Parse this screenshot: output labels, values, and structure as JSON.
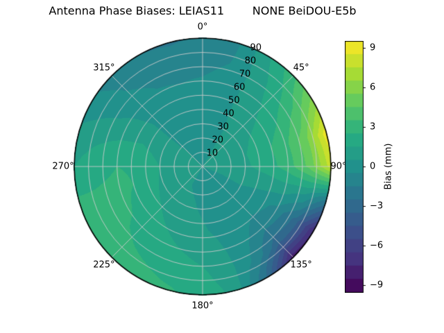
{
  "chart_data": {
    "type": "heatmap",
    "projection": "polar",
    "title": "Antenna Phase Biases: LEIAS11        NONE BeiDOU-E5b",
    "angular_tick_degrees": [
      0,
      45,
      90,
      135,
      180,
      225,
      270,
      315
    ],
    "angular_tick_labels": [
      "0°",
      "45°",
      "90°",
      "135°",
      "180°",
      "225°",
      "270°",
      "315°"
    ],
    "angular_direction": "clockwise-from-north",
    "radial_ticks": [
      10,
      20,
      30,
      40,
      50,
      60,
      70,
      80,
      90
    ],
    "radial_max": 90,
    "radial_label_angle_deg": 22.5,
    "azimuth_deg": [
      0,
      15,
      30,
      45,
      60,
      75,
      90,
      105,
      120,
      135,
      150,
      165,
      180,
      195,
      210,
      225,
      240,
      255,
      270,
      285,
      300,
      315,
      330,
      345,
      360
    ],
    "zenith_deg": [
      0,
      15,
      30,
      45,
      60,
      75,
      90
    ],
    "bias_mm": [
      [
        0.5,
        0.5,
        0.5,
        0.5,
        0.5,
        0.5,
        0.5,
        0.5,
        0.5,
        0.5,
        0.5,
        0.5,
        0.5,
        0.5,
        0.5,
        0.5,
        0.5,
        0.5,
        0.5,
        0.5,
        0.5,
        0.5,
        0.5,
        0.5,
        0.5
      ],
      [
        0.4,
        0.4,
        0.5,
        0.6,
        0.7,
        0.8,
        0.8,
        0.6,
        0.4,
        0.3,
        0.3,
        0.3,
        0.4,
        0.4,
        0.5,
        0.5,
        0.6,
        0.7,
        0.8,
        0.7,
        0.6,
        0.5,
        0.4,
        0.4,
        0.4
      ],
      [
        0.2,
        0.3,
        0.5,
        0.9,
        1.2,
        1.4,
        1.3,
        0.8,
        0.4,
        0.2,
        0.2,
        0.3,
        0.4,
        0.6,
        0.8,
        1.0,
        1.2,
        1.4,
        1.5,
        1.2,
        0.8,
        0.4,
        0.3,
        0.2,
        0.2
      ],
      [
        0.0,
        0.2,
        0.6,
        1.2,
        1.8,
        2.2,
        2.0,
        0.9,
        0.0,
        -0.3,
        0.0,
        0.3,
        0.6,
        0.9,
        1.3,
        1.7,
        2.1,
        2.4,
        2.4,
        1.8,
        1.0,
        0.3,
        0.0,
        0.0,
        0.0
      ],
      [
        -0.4,
        -0.1,
        0.7,
        1.6,
        2.5,
        3.2,
        3.0,
        1.0,
        -0.8,
        -1.2,
        -0.3,
        0.5,
        1.1,
        1.5,
        1.9,
        2.3,
        2.6,
        2.7,
        2.5,
        1.7,
        0.7,
        0.0,
        -0.4,
        -0.5,
        -0.4
      ],
      [
        -0.9,
        -0.5,
        0.8,
        2.2,
        3.8,
        5.2,
        4.8,
        0.5,
        -2.8,
        -3.2,
        -0.8,
        0.8,
        1.7,
        2.1,
        2.4,
        2.6,
        2.7,
        2.6,
        2.2,
        1.3,
        0.3,
        -0.5,
        -0.9,
        -1.0,
        -0.9
      ],
      [
        -1.4,
        -0.8,
        1.2,
        3.2,
        6.0,
        9.2,
        8.0,
        -1.5,
        -7.5,
        -8.2,
        -2.5,
        1.2,
        2.2,
        2.6,
        2.8,
        2.9,
        2.9,
        2.6,
        1.5,
        0.8,
        -0.2,
        -1.0,
        -1.5,
        -1.6,
        -1.4
      ]
    ],
    "vmin": -9.5,
    "vmax": 9.5,
    "level_step": 1,
    "colorbar": {
      "label": "Bias (mm)",
      "tick_values": [
        9,
        6,
        3,
        0,
        -3,
        -6,
        -9
      ],
      "tick_labels": [
        "9",
        "6",
        "3",
        "0",
        "−3",
        "−6",
        "−9"
      ]
    },
    "colormap": {
      "name": "viridis",
      "stops": [
        "#440154",
        "#46327e",
        "#3b528b",
        "#2c718e",
        "#21918c",
        "#27ad81",
        "#5ec962",
        "#aadc32",
        "#fde725"
      ]
    },
    "grid_color": "#cccccc",
    "outline_color": "#000000",
    "background": "#ffffff"
  }
}
